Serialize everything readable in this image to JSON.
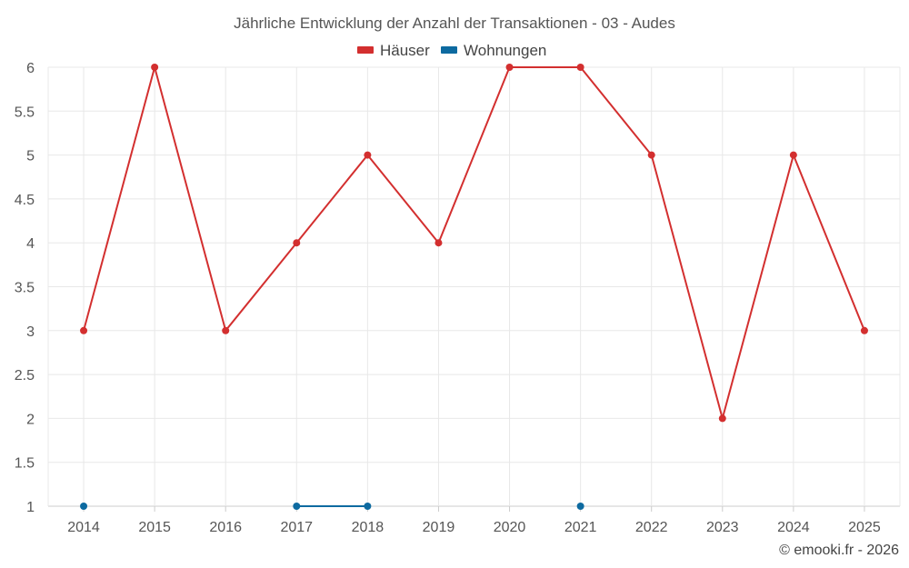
{
  "chart_data": {
    "type": "line",
    "title": "Jährliche Entwicklung der Anzahl der Transaktionen - 03 - Audes",
    "categories": [
      "2014",
      "2015",
      "2016",
      "2017",
      "2018",
      "2019",
      "2020",
      "2021",
      "2022",
      "2023",
      "2024",
      "2025"
    ],
    "series": [
      {
        "name": "Häuser",
        "color": "#d32f2f",
        "values": [
          3,
          6,
          3,
          4,
          5,
          4,
          6,
          6,
          5,
          2,
          5,
          3
        ]
      },
      {
        "name": "Wohnungen",
        "color": "#0d6aa0",
        "values": [
          1,
          null,
          null,
          1,
          1,
          null,
          null,
          1,
          null,
          null,
          null,
          null
        ]
      }
    ],
    "ylim": [
      1,
      6
    ],
    "yticks": [
      "1",
      "1.5",
      "2",
      "2.5",
      "3",
      "3.5",
      "4",
      "4.5",
      "5",
      "5.5",
      "6"
    ],
    "grid": true,
    "legend_position": "top-center"
  },
  "credit": "© emooki.fr - 2026"
}
